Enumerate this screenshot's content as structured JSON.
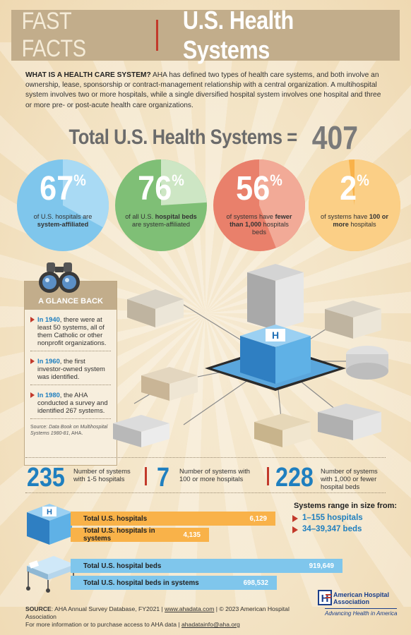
{
  "header": {
    "fast_facts": "FAST FACTS",
    "title": "U.S. Health Systems"
  },
  "intro": {
    "lead": "WHAT IS A HEALTH CARE SYSTEM?",
    "body": " AHA has defined two types of health care systems, and both involve an ownership, lease, sponsorship or contract-management relationship with a central organization. A multihospital system involves two or more hospitals, while a single diversified hospital system involves one hospital and three or more pre- or post-acute health care organizations."
  },
  "total": {
    "label": "Total U.S. Health Systems =",
    "value": "407"
  },
  "circles": [
    {
      "value": "67",
      "unit": "%",
      "fraction": 0.67,
      "pre": "of U.S. hospitals are ",
      "bold": "system-affiliated",
      "post": "",
      "color": "#7fc6ec",
      "light": "#a9daf4"
    },
    {
      "value": "76",
      "unit": "%",
      "fraction": 0.76,
      "pre": "of all U.S. ",
      "bold": "hospital beds",
      "post": " are system-affiliated",
      "color": "#7fbf76",
      "light": "#cde6c4"
    },
    {
      "value": "56",
      "unit": "%",
      "fraction": 0.56,
      "pre": "of systems have ",
      "bold": "fewer than 1,000",
      "post": " hospitals beds",
      "color": "#e9806b",
      "light": "#f2aa97"
    },
    {
      "value": "2",
      "unit": "%",
      "fraction": 0.02,
      "pre": "of systems have ",
      "bold": "100 or more",
      "post": " hospitals",
      "color": "#f9b249",
      "light": "#fbcf86"
    }
  ],
  "glance": {
    "title": "A GLANCE BACK",
    "items": [
      {
        "year": "In 1940",
        "text": ", there were at least 50 systems, all of them Catholic or other nonprofit organizations."
      },
      {
        "year": "In 1960",
        "text": ", the first investor-owned system was identified."
      },
      {
        "year": "In 1980",
        "text": ", the AHA conducted a survey and identified 267 systems."
      }
    ],
    "source_pre": "Source: ",
    "source_italic": "Data Book on Multihospital Systems 1980-81",
    "source_post": ", AHA."
  },
  "stats": [
    {
      "value": "235",
      "label": "Number of systems with 1-5 hospitals"
    },
    {
      "value": "7",
      "label": "Number of systems with 100 or more hospitals"
    },
    {
      "value": "228",
      "label": "Number of systems with 1,000 or fewer hospital beds"
    }
  ],
  "hospital_bars": [
    {
      "label": "Total U.S. hospitals",
      "value": "6,129",
      "amount": 6129
    },
    {
      "label": "Total U.S. hospitals in systems",
      "value": "4,135",
      "amount": 4135
    }
  ],
  "bed_bars": [
    {
      "label": "Total U.S. hospital beds",
      "value": "919,649",
      "amount": 919649
    },
    {
      "label": "Total U.S. hospital beds in systems",
      "value": "698,532",
      "amount": 698532
    }
  ],
  "range": {
    "title": "Systems range in size from:",
    "items": [
      "1–155 hospitals",
      "34–39,347 beds"
    ]
  },
  "footer": {
    "source_label": "SOURCE",
    "source_text": ": AHA Annual Survey Database, FY2021  |  ",
    "link1": "www.ahadata.com",
    "copyright": "  |  © 2023 American Hospital Association",
    "more": "For more information or to purchase access to AHA data  |  ",
    "link2": "ahadatainfo@aha.org"
  },
  "aha": {
    "name1": "American Hospital",
    "name2": "Association",
    "tagline": "Advancing Health in America"
  },
  "colors": {
    "blue": "#1f7fbf",
    "red": "#c2392b",
    "tan": "#c2ad8b",
    "orange_bar": "#f9b249",
    "blue_bar": "#7fc6ec"
  }
}
